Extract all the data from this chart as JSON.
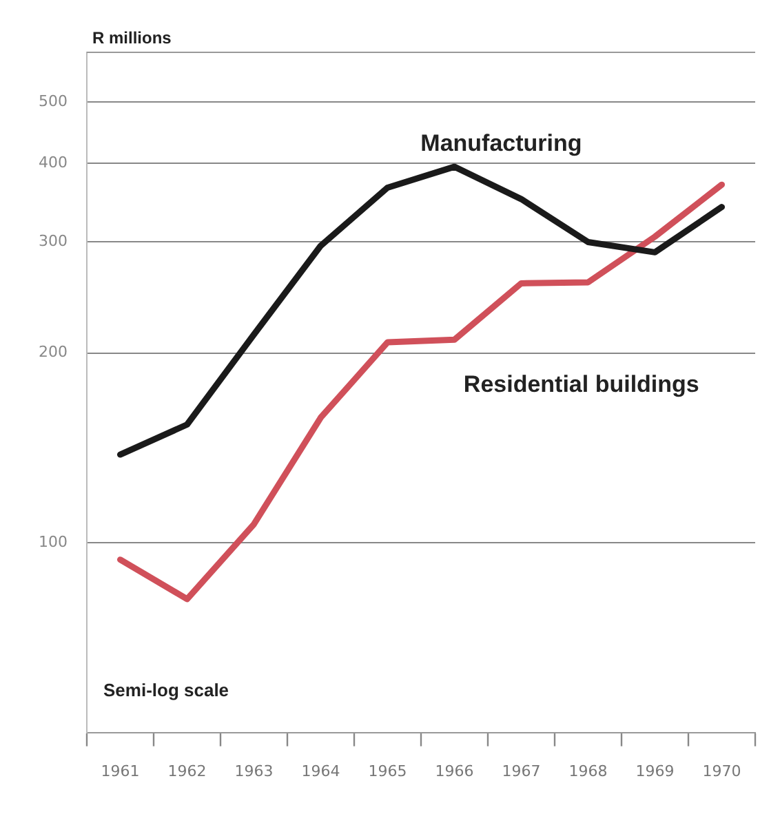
{
  "chart_data": {
    "type": "line",
    "ylabel": "R millions",
    "annotations": [
      "Semi-log scale"
    ],
    "categories": [
      "1961",
      "1962",
      "1963",
      "1964",
      "1965",
      "1966",
      "1967",
      "1968",
      "1969",
      "1970"
    ],
    "series": [
      {
        "name": "Manufacturing",
        "color": "#1a1a1a",
        "values": [
          138,
          154,
          214,
          296,
          366,
          395,
          351,
          300,
          289,
          341
        ]
      },
      {
        "name": "Residential buildings",
        "color": "#d0505a",
        "values": [
          94,
          81.4,
          107,
          158,
          208,
          210,
          258,
          259,
          306,
          370
        ]
      }
    ],
    "log": true,
    "ylim": [
      50,
      600
    ],
    "yticks": [
      100,
      200,
      300,
      400,
      500
    ],
    "grid": "y",
    "legend": false,
    "marker": "none",
    "line_style": "solid"
  }
}
